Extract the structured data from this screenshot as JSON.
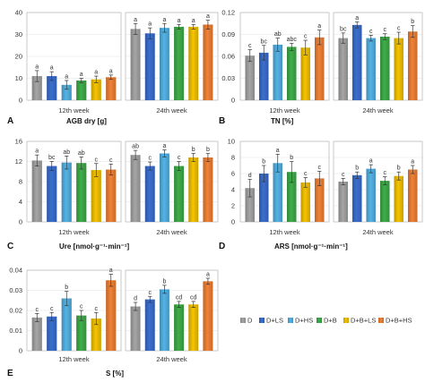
{
  "legend": [
    {
      "name": "D",
      "color": "#a6a6a6"
    },
    {
      "name": "D+LS",
      "color": "#3b6fd0"
    },
    {
      "name": "D+HS",
      "color": "#54b3e6"
    },
    {
      "name": "D+B",
      "color": "#3fae49"
    },
    {
      "name": "D+B+LS",
      "color": "#f5c400"
    },
    {
      "name": "D+B+HS",
      "color": "#f28236"
    }
  ],
  "chart_data": [
    {
      "type": "bar",
      "panel": "A",
      "xlabel": "AGB dry [g]",
      "ylim": [
        0,
        40
      ],
      "yticks": [
        "0",
        "10",
        "20",
        "30",
        "40"
      ],
      "groups": [
        {
          "label": "12th week",
          "values": [
            11,
            11,
            7,
            9,
            9.5,
            10.5
          ],
          "errors": [
            2.5,
            2,
            2,
            1,
            1.5,
            1
          ],
          "letters": [
            "a",
            "a",
            "a",
            "a",
            "a",
            "a"
          ]
        },
        {
          "label": "24th week",
          "values": [
            32.5,
            30.5,
            33,
            33.5,
            33.5,
            34.5
          ],
          "errors": [
            2.5,
            2.5,
            2,
            1,
            1,
            2
          ],
          "letters": [
            "a",
            "a",
            "a",
            "a",
            "a",
            "a"
          ]
        }
      ]
    },
    {
      "type": "bar",
      "panel": "B",
      "xlabel": "TN [%]",
      "ylim": [
        0,
        0.12
      ],
      "yticks": [
        "0",
        "0.03",
        "0.06",
        "0.09",
        "0.12"
      ],
      "groups": [
        {
          "label": "12th week",
          "values": [
            0.061,
            0.065,
            0.076,
            0.073,
            0.072,
            0.086
          ],
          "errors": [
            0.008,
            0.01,
            0.009,
            0.005,
            0.01,
            0.01
          ],
          "letters": [
            "c",
            "bc",
            "ab",
            "abc",
            "c",
            "a"
          ]
        },
        {
          "label": "24th week",
          "values": [
            0.085,
            0.103,
            0.085,
            0.087,
            0.085,
            0.094
          ],
          "errors": [
            0.007,
            0.004,
            0.004,
            0.004,
            0.008,
            0.008
          ],
          "letters": [
            "bc",
            "a",
            "c",
            "c",
            "c",
            "b"
          ]
        }
      ]
    },
    {
      "type": "bar",
      "panel": "C",
      "xlabel": "Ure [nmol·g⁻¹·min⁻¹]",
      "ylim": [
        0,
        16
      ],
      "yticks": [
        "0",
        "4",
        "8",
        "12",
        "16"
      ],
      "groups": [
        {
          "label": "12th week",
          "values": [
            12.2,
            11.1,
            11.8,
            11.7,
            10.3,
            10.4
          ],
          "errors": [
            1.1,
            0.9,
            1.3,
            1.2,
            1.3,
            1.1
          ],
          "letters": [
            "a",
            "bc",
            "ab",
            "ab",
            "c",
            "c"
          ]
        },
        {
          "label": "24th week",
          "values": [
            13.3,
            11.1,
            13.6,
            11.1,
            12.8,
            12.8
          ],
          "errors": [
            0.9,
            0.8,
            0.7,
            0.9,
            0.8,
            0.8
          ],
          "letters": [
            "ab",
            "c",
            "a",
            "c",
            "b",
            "b"
          ]
        }
      ]
    },
    {
      "type": "bar",
      "panel": "D",
      "xlabel": "ARS [nmol·g⁻¹·min⁻¹]",
      "ylim": [
        0,
        10
      ],
      "yticks": [
        "0",
        "2",
        "4",
        "6",
        "8",
        "10"
      ],
      "groups": [
        {
          "label": "12th week",
          "values": [
            4.2,
            6,
            7.3,
            6.2,
            4.9,
            5.4
          ],
          "errors": [
            1.1,
            1,
            1.1,
            1.3,
            0.6,
            0.9
          ],
          "letters": [
            "d",
            "b",
            "a",
            "b",
            "c",
            "c"
          ]
        },
        {
          "label": "24th week",
          "values": [
            5,
            5.8,
            6.6,
            5.1,
            5.7,
            6.5
          ],
          "errors": [
            0.4,
            0.4,
            0.5,
            0.5,
            0.5,
            0.5
          ],
          "letters": [
            "c",
            "b",
            "a",
            "c",
            "b",
            "a"
          ]
        }
      ]
    },
    {
      "type": "bar",
      "panel": "E",
      "xlabel": "S [%]",
      "ylim": [
        0,
        0.04
      ],
      "yticks": [
        "0",
        "0.01",
        "0.02",
        "0.03",
        "0.04"
      ],
      "groups": [
        {
          "label": "12th week",
          "values": [
            0.0165,
            0.017,
            0.026,
            0.0175,
            0.016,
            0.035
          ],
          "errors": [
            0.002,
            0.002,
            0.0035,
            0.0025,
            0.003,
            0.003
          ],
          "letters": [
            "c",
            "c",
            "b",
            "c",
            "c",
            "a"
          ]
        },
        {
          "label": "24th week",
          "values": [
            0.022,
            0.0255,
            0.0305,
            0.023,
            0.023,
            0.0345
          ],
          "errors": [
            0.002,
            0.0015,
            0.002,
            0.0015,
            0.0015,
            0.0015
          ],
          "letters": [
            "d",
            "c",
            "b",
            "cd",
            "cd",
            "a"
          ]
        }
      ]
    }
  ]
}
